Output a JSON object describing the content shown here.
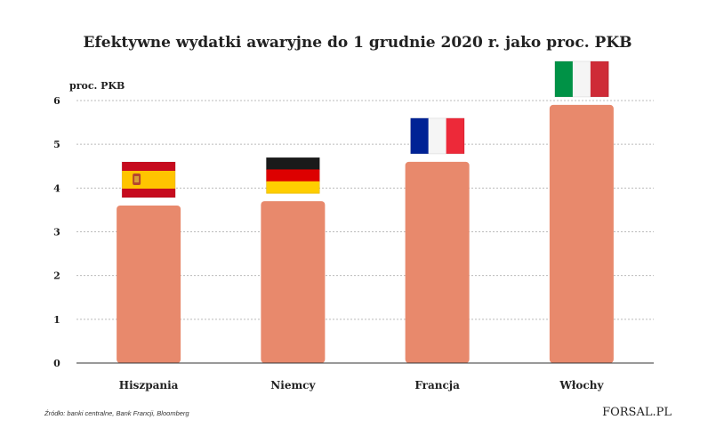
{
  "chart_data": {
    "type": "bar",
    "title": "Efektywne wydatki awaryjne do 1 grudnie 2020 r. jako proc. PKB",
    "ylabel": "proc. PKB",
    "xlabel": "",
    "categories": [
      "Hiszpania",
      "Niemcy",
      "Francja",
      "Włochy"
    ],
    "values": [
      3.6,
      3.7,
      4.6,
      5.9
    ],
    "ylim": [
      0,
      6
    ],
    "yticks": [
      "0",
      "1",
      "2",
      "3",
      "4",
      "5",
      "6"
    ],
    "grid": true,
    "bar_color": "#e8896c",
    "flags": [
      {
        "country": "Hiszpania",
        "colors": [
          "#c60b1e",
          "#ffc400",
          "#c60b1e"
        ],
        "pattern": "horizontal"
      },
      {
        "country": "Niemcy",
        "colors": [
          "#1a1a1a",
          "#dd0000",
          "#ffce00"
        ],
        "pattern": "horizontal"
      },
      {
        "country": "Francja",
        "colors": [
          "#002395",
          "#f5f5f5",
          "#ed2939"
        ],
        "pattern": "vertical"
      },
      {
        "country": "Włochy",
        "colors": [
          "#009246",
          "#f5f5f5",
          "#ce2b37"
        ],
        "pattern": "vertical"
      }
    ]
  },
  "source": "Źródło:  banki centralne, Bank Francji, Bloomberg",
  "logo": "FORSAL.PL"
}
